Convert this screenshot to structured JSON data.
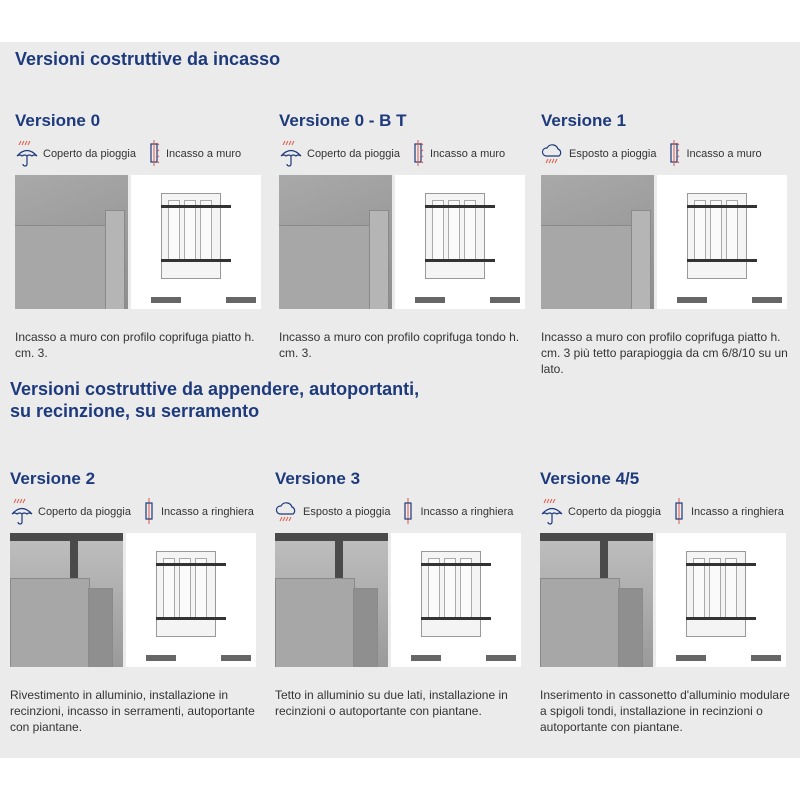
{
  "section1": {
    "title": "Versioni costruttive da incasso"
  },
  "section2": {
    "title_line1": "Versioni costruttive da appendere, autoportanti,",
    "title_line2": "su recinzione, su serramento"
  },
  "colors": {
    "heading": "#1d3a7c",
    "rain": "#e05a4a",
    "background": "#ebebeb"
  },
  "row1": [
    {
      "title": "Versione 0",
      "weather_icon": "umbrella-icon",
      "weather": "Coperto da pioggia",
      "mount_icon": "wall-mount-icon",
      "mount": "Incasso a muro",
      "desc": "Incasso a muro con profilo coprifuga piatto h. cm. 3."
    },
    {
      "title": "Versione 0 - B T",
      "weather_icon": "umbrella-icon",
      "weather": "Coperto da pioggia",
      "mount_icon": "wall-mount-icon",
      "mount": "Incasso a muro",
      "desc": "Incasso a muro con profilo coprifuga tondo h. cm. 3."
    },
    {
      "title": "Versione 1",
      "weather_icon": "rain-cloud-icon",
      "weather": "Esposto a pioggia",
      "mount_icon": "wall-mount-icon",
      "mount": "Incasso a muro",
      "desc": "Incasso a muro con profilo coprifuga piatto h. cm. 3 più tetto parapioggia da cm 6/8/10 su un lato."
    }
  ],
  "row2": [
    {
      "title": "Versione 2",
      "weather_icon": "umbrella-icon",
      "weather": "Coperto da pioggia",
      "mount_icon": "railing-mount-icon",
      "mount": "Incasso a ringhiera",
      "desc": "Rivestimento in alluminio, installazione in recinzioni, incasso in serramenti, autoportante con piantane."
    },
    {
      "title": "Versione 3",
      "weather_icon": "rain-cloud-icon",
      "weather": "Esposto a pioggia",
      "mount_icon": "railing-mount-icon",
      "mount": "Incasso a ringhiera",
      "desc": "Tetto in alluminio su due lati, installazione in recinzioni o autoportante con piantane."
    },
    {
      "title": "Versione 4/5",
      "weather_icon": "umbrella-icon",
      "weather": "Coperto da pioggia",
      "mount_icon": "railing-mount-icon",
      "mount": "Incasso a ringhiera",
      "desc": "Inserimento in cassonetto d'alluminio modulare a spigoli tondi, installazione in recinzioni o autoportante con piantane."
    }
  ]
}
